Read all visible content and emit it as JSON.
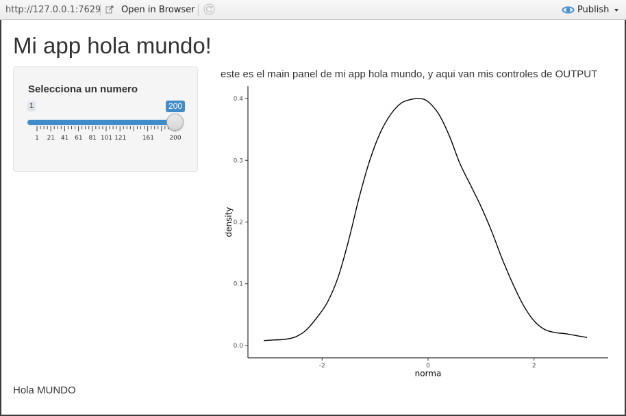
{
  "toolbar": {
    "url": "http://127.0.0.1:7629",
    "open_label": "Open in Browser",
    "publish_label": "Publish"
  },
  "app": {
    "title": "Mi app hola mundo!",
    "main_text": "este es el main panel de mi app hola mundo, y aqui van mis controles de OUTPUT",
    "footer_text": "Hola MUNDO"
  },
  "slider": {
    "label": "Selecciona un numero",
    "min": 1,
    "max": 200,
    "value": 200,
    "min_label": "1",
    "value_label": "200",
    "tick_labels": [
      "1",
      "21",
      "41",
      "61",
      "81",
      "101",
      "121",
      "161",
      "200"
    ],
    "accent_color": "#428bca"
  },
  "chart_data": {
    "type": "line",
    "xlabel": "norma",
    "ylabel": "density",
    "xlim": [
      -3.4,
      3.4
    ],
    "ylim": [
      -0.02,
      0.42
    ],
    "xticks": [
      -2,
      0,
      2
    ],
    "yticks": [
      0.0,
      0.1,
      0.2,
      0.3,
      0.4
    ],
    "grid": false,
    "series": [
      {
        "x": [
          -3.1,
          -2.9,
          -2.7,
          -2.5,
          -2.3,
          -2.1,
          -1.9,
          -1.7,
          -1.5,
          -1.3,
          -1.1,
          -0.9,
          -0.7,
          -0.5,
          -0.3,
          -0.15,
          0.0,
          0.2,
          0.4,
          0.6,
          0.8,
          1.0,
          1.2,
          1.4,
          1.6,
          1.8,
          2.0,
          2.2,
          2.4,
          2.6,
          2.8,
          3.0
        ],
        "y": [
          0.008,
          0.009,
          0.01,
          0.014,
          0.025,
          0.045,
          0.07,
          0.11,
          0.17,
          0.24,
          0.3,
          0.345,
          0.375,
          0.393,
          0.399,
          0.4,
          0.395,
          0.375,
          0.34,
          0.295,
          0.26,
          0.225,
          0.185,
          0.14,
          0.1,
          0.065,
          0.04,
          0.026,
          0.021,
          0.019,
          0.016,
          0.013
        ]
      }
    ]
  }
}
